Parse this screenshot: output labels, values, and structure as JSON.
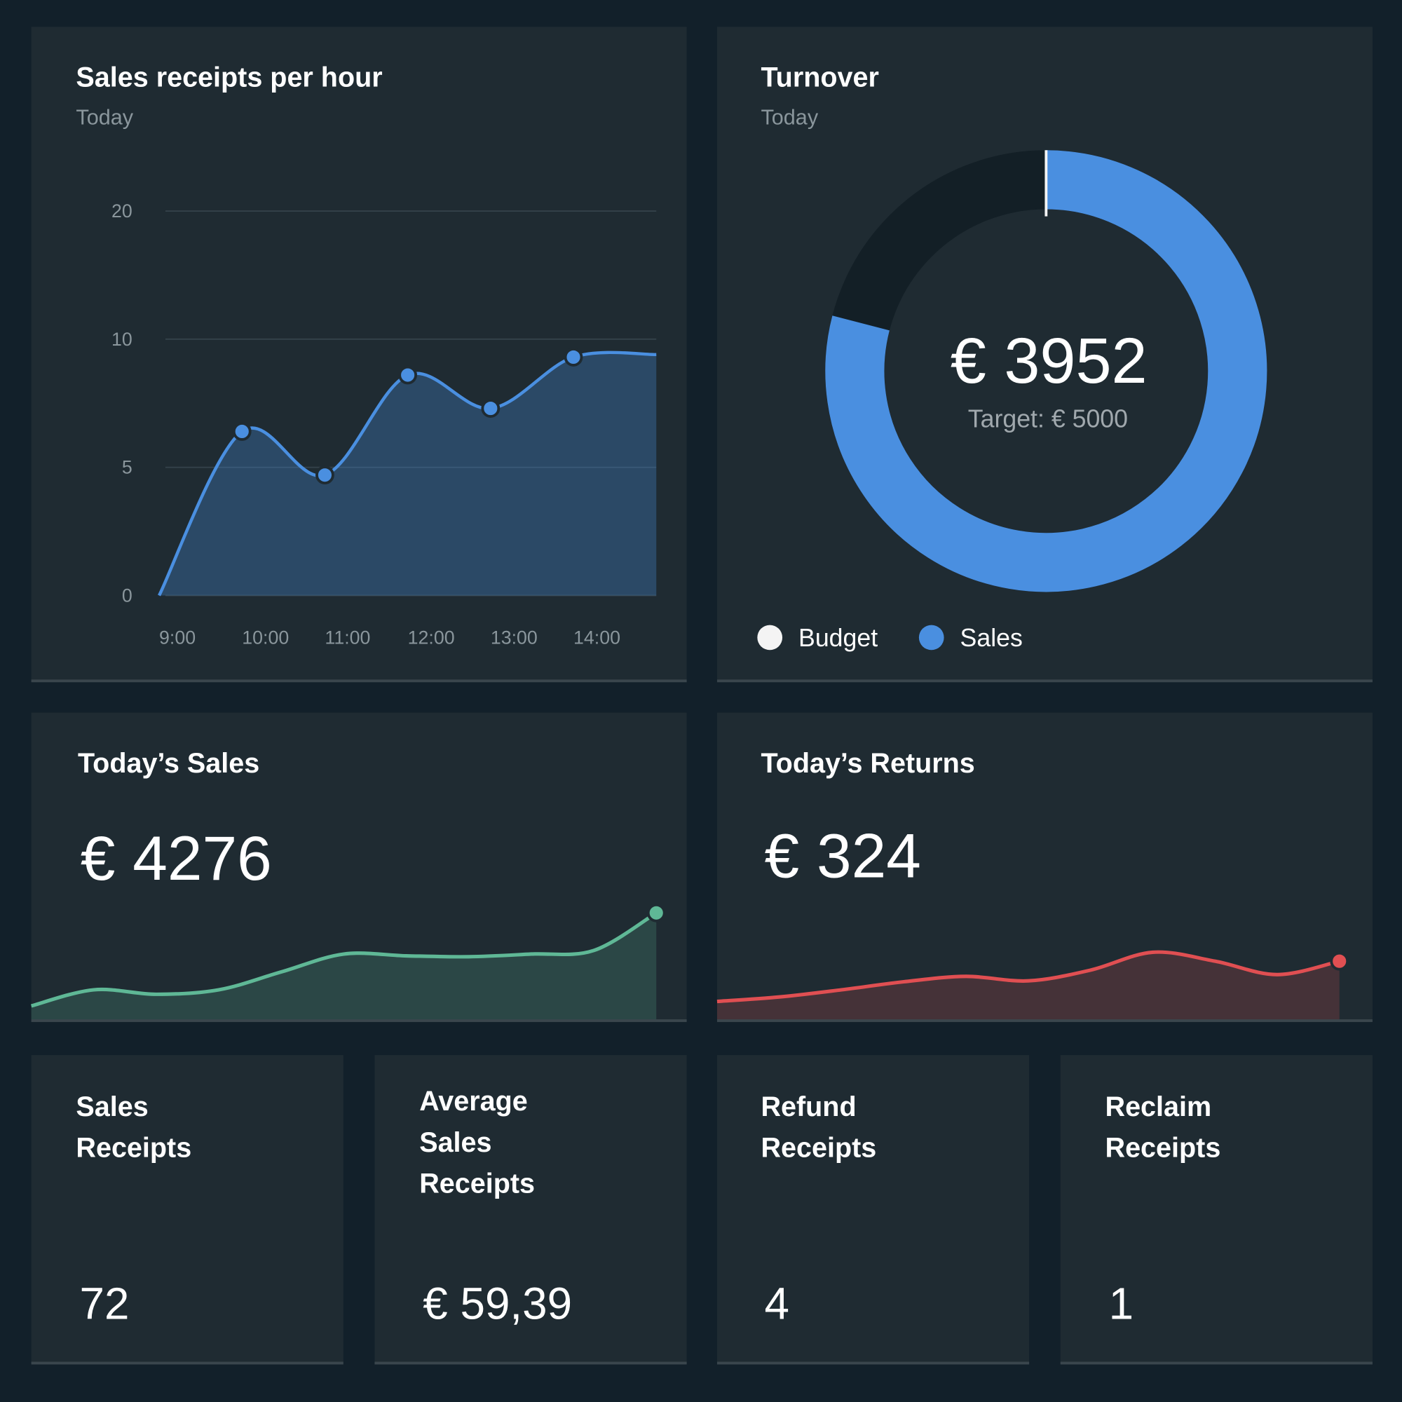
{
  "chart_data": [
    {
      "type": "line",
      "title": "Sales receipts per hour",
      "subtitle": "Today",
      "categories": [
        "9:00",
        "10:00",
        "11:00",
        "12:00",
        "13:00",
        "14:00",
        null
      ],
      "values": [
        0,
        6.4,
        4.7,
        8.6,
        7.3,
        9.3,
        9.4
      ],
      "color": "#4a8fe0",
      "ylim": [
        0,
        20
      ],
      "yticks": [
        0,
        5,
        10,
        20
      ],
      "scale": "tick-spaced",
      "grid": true
    },
    {
      "type": "donut",
      "title": "Turnover",
      "subtitle": "Today",
      "legend": "bottom-left",
      "series": [
        {
          "name": "Budget",
          "color": "#f4f4f4",
          "values": [
            5000
          ],
          "value_labels": [
            "Target: € 5000"
          ]
        },
        {
          "name": "Sales",
          "color": "#4a8fe0",
          "values": [
            3952
          ],
          "value_labels": [
            "€ 3952"
          ]
        }
      ]
    },
    {
      "type": "sparkline",
      "title": "Today’s Sales",
      "headline": "€ 4276",
      "color": "#5fb896",
      "ylim": [
        0,
        140
      ],
      "values": [
        15,
        33,
        28,
        33,
        53,
        73,
        71,
        70,
        73,
        77,
        119
      ]
    },
    {
      "type": "sparkline",
      "title": "Today’s Returns",
      "headline": "€ 324",
      "color": "#e04f52",
      "ylim": [
        0,
        140
      ],
      "values": [
        20,
        25,
        33,
        42,
        48,
        43,
        55,
        75,
        65,
        50,
        65
      ]
    }
  ],
  "tiles": [
    {
      "title": [
        "Sales",
        "Receipts"
      ],
      "value": 72
    },
    {
      "title": [
        "Average",
        "Sales",
        "Receipts"
      ],
      "value": "€ 59,39"
    },
    {
      "title": [
        "Refund",
        "Receipts"
      ],
      "value": 4
    },
    {
      "title": [
        "Reclaim",
        "Receipts"
      ],
      "value": 1
    }
  ]
}
